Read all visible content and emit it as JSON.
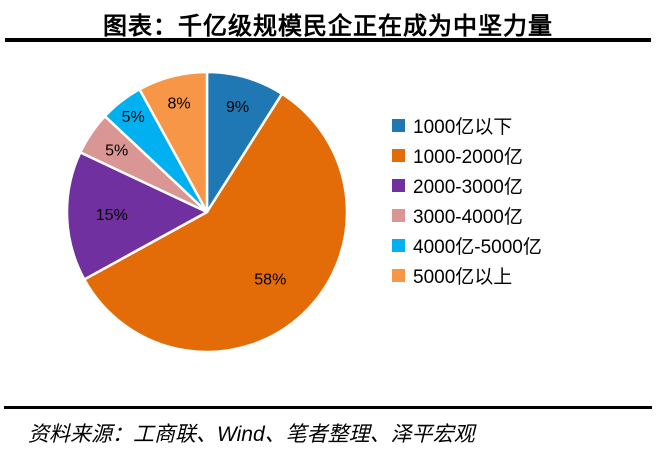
{
  "title": "图表：千亿级规模民企正在成为中坚力量",
  "footer": {
    "source": "资料来源：工商联、Wind、笔者整理、泽平宏观"
  },
  "chart_data": {
    "type": "pie",
    "title": "图表：千亿级规模民企正在成为中坚力量",
    "labels": [
      "1000亿以下",
      "1000-2000亿",
      "2000-3000亿",
      "3000-4000亿",
      "4000亿-5000亿",
      "5000亿以上"
    ],
    "values": [
      9,
      58,
      15,
      5,
      5,
      8
    ],
    "value_labels": [
      "9%",
      "58%",
      "15%",
      "5%",
      "5%",
      "8%"
    ],
    "unit": "%",
    "colors": [
      "#1F77B4",
      "#E36C09",
      "#7030A0",
      "#D99694",
      "#00B0F0",
      "#F79646"
    ],
    "start_angle": "top",
    "direction": "clockwise",
    "legend_position": "right",
    "source_note": "资料来源：工商联、Wind、笔者整理、泽平宏观"
  }
}
